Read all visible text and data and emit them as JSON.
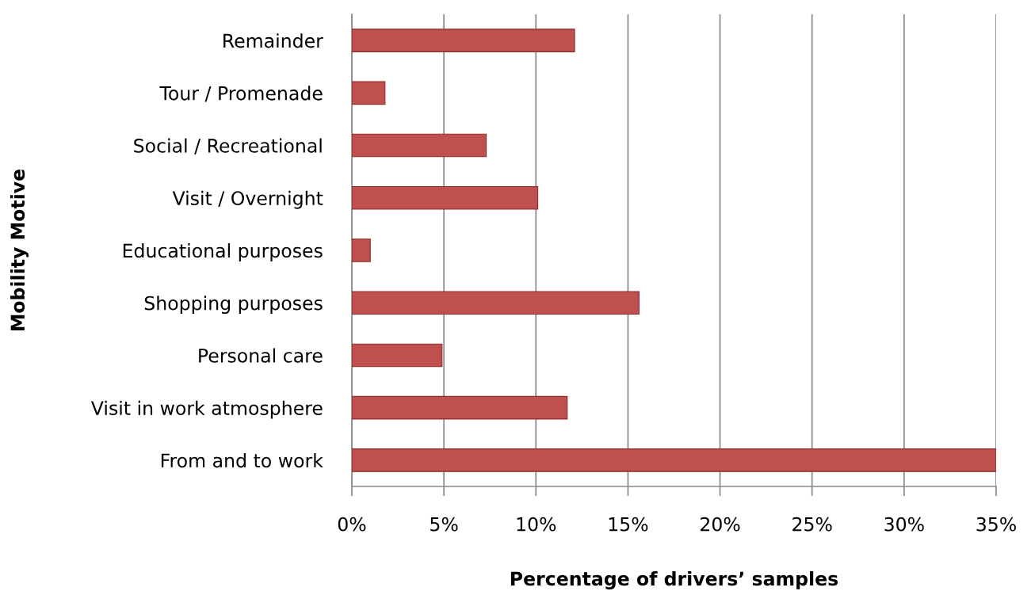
{
  "chart_data": {
    "type": "bar",
    "orientation": "horizontal",
    "xlabel": "Percentage of drivers’ samples",
    "ylabel": "Mobility Motive",
    "categories": [
      "Remainder",
      "Tour / Promenade",
      "Social / Recreational",
      "Visit / Overnight",
      "Educational purposes",
      "Shopping purposes",
      "Personal care",
      "Visit in work atmosphere",
      "From and to work"
    ],
    "values": [
      12.1,
      1.8,
      7.3,
      10.1,
      1.0,
      15.6,
      4.9,
      11.7,
      35.0
    ],
    "color": "#c0504d",
    "xlim": [
      0,
      35
    ],
    "xticks": [
      {
        "value": 0,
        "label": "0%"
      },
      {
        "value": 5,
        "label": "5%"
      },
      {
        "value": 10,
        "label": "10%"
      },
      {
        "value": 15,
        "label": "15%"
      },
      {
        "value": 20,
        "label": "20%"
      },
      {
        "value": 25,
        "label": "25%"
      },
      {
        "value": 30,
        "label": "30%"
      },
      {
        "value": 35,
        "label": "35%"
      }
    ],
    "grid": "x",
    "legend": false
  }
}
